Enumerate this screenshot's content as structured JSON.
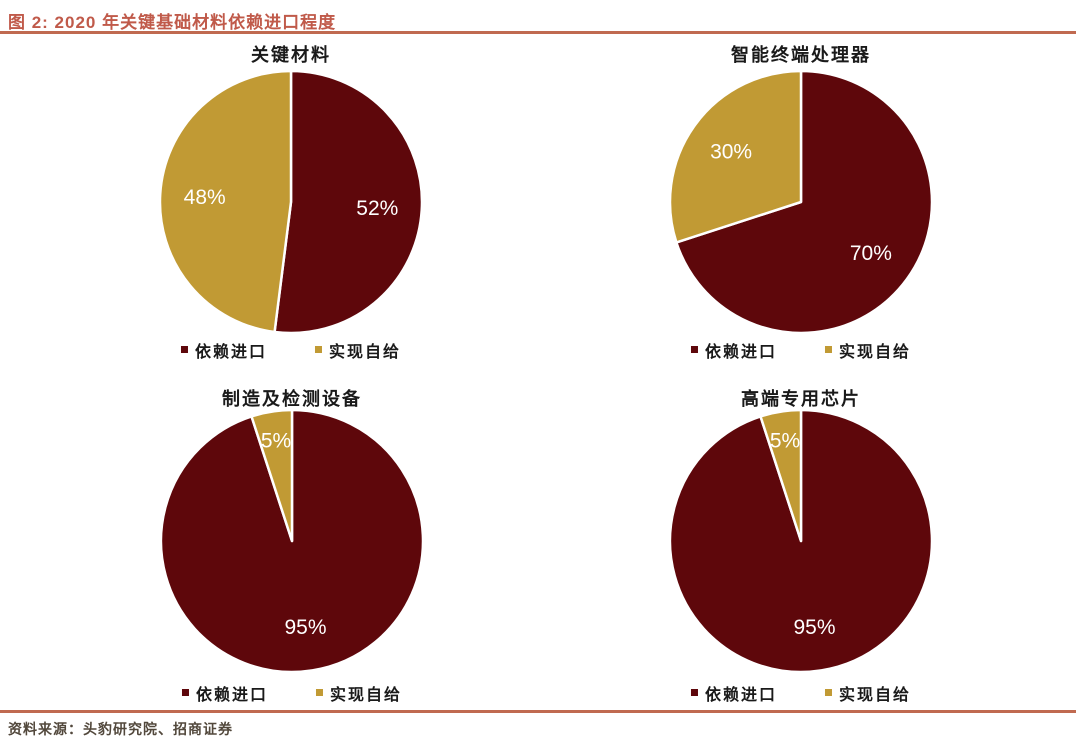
{
  "header": {
    "title": "图 2:  2020 年关键基础材料依赖进口程度"
  },
  "footer": {
    "source": "资料来源：头豹研究院、招商证券"
  },
  "colors": {
    "import": "#5E070B",
    "self_supply": "#C19A34",
    "accent_line": "#C06A50",
    "header_text": "#C05A4A",
    "body_text": "#1A1A1A",
    "source_text": "#52483C",
    "slice_label": "#FFFFFF"
  },
  "legend": {
    "import_label": "依赖进口",
    "self_label": "实现自给"
  },
  "chart_data": [
    {
      "type": "pie",
      "title": "关键材料",
      "start_angle_deg": 0,
      "direction": "clockwise",
      "legend_position": "bottom",
      "slices": [
        {
          "label": "依赖进口",
          "value": 52,
          "label_text": "52%",
          "color_key": "import"
        },
        {
          "label": "实现自给",
          "value": 48,
          "label_text": "48%",
          "color_key": "self_supply"
        }
      ]
    },
    {
      "type": "pie",
      "title": "智能终端处理器",
      "start_angle_deg": 0,
      "direction": "clockwise",
      "legend_position": "bottom",
      "slices": [
        {
          "label": "依赖进口",
          "value": 70,
          "label_text": "70%",
          "color_key": "import"
        },
        {
          "label": "实现自给",
          "value": 30,
          "label_text": "30%",
          "color_key": "self_supply"
        }
      ]
    },
    {
      "type": "pie",
      "title": "制造及检测设备",
      "start_angle_deg": 0,
      "direction": "clockwise",
      "legend_position": "bottom",
      "slices": [
        {
          "label": "依赖进口",
          "value": 95,
          "label_text": "95%",
          "color_key": "import"
        },
        {
          "label": "实现自给",
          "value": 5,
          "label_text": "5%",
          "color_key": "self_supply"
        }
      ]
    },
    {
      "type": "pie",
      "title": "高端专用芯片",
      "start_angle_deg": 0,
      "direction": "clockwise",
      "legend_position": "bottom",
      "slices": [
        {
          "label": "依赖进口",
          "value": 95,
          "label_text": "95%",
          "color_key": "import"
        },
        {
          "label": "实现自给",
          "value": 5,
          "label_text": "5%",
          "color_key": "self_supply"
        }
      ]
    }
  ]
}
